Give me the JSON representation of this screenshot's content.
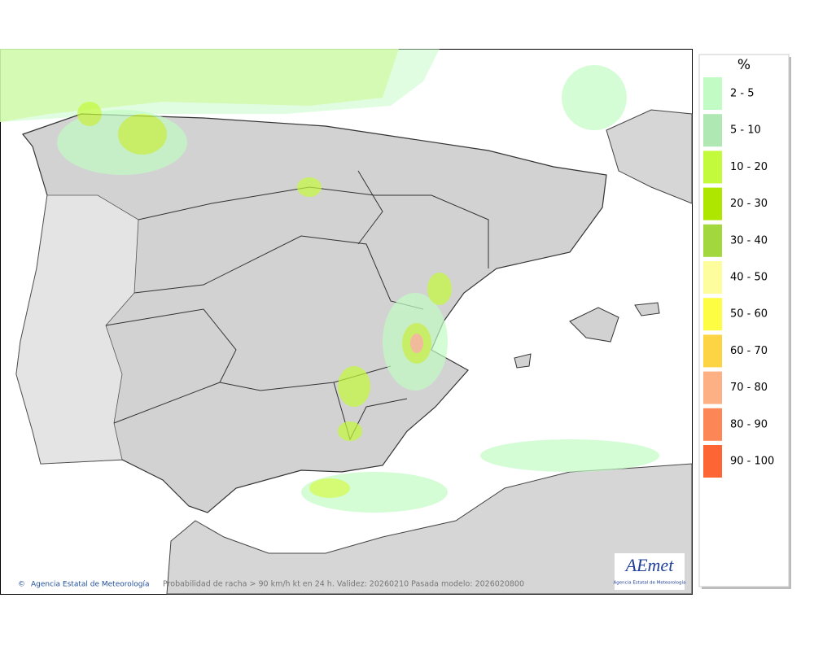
{
  "map": {
    "caption": "Probabilidad de racha > 90 km/h kt en 24 h. Validez: 20260210 Pasada modelo: 2026020800",
    "credit": "Agencia Estatal de Meteorología",
    "logo": {
      "name": "AEmet",
      "subtitle": "Agencia Estatal de Meteorología"
    }
  },
  "legend": {
    "title": "%",
    "items": [
      {
        "label": "2 - 5",
        "color": "#c2fcc4"
      },
      {
        "label": "5 - 10",
        "color": "#b0e8b4"
      },
      {
        "label": "10 - 20",
        "color": "#c4fa3c"
      },
      {
        "label": "20 - 30",
        "color": "#aee600"
      },
      {
        "label": "30 - 40",
        "color": "#a2d83e"
      },
      {
        "label": "40 - 50",
        "color": "#fdfd9e"
      },
      {
        "label": "50 - 60",
        "color": "#fdfd44"
      },
      {
        "label": "60 - 70",
        "color": "#fdd444"
      },
      {
        "label": "70 - 80",
        "color": "#fdb084"
      },
      {
        "label": "80 - 90",
        "color": "#fd8656"
      },
      {
        "label": "90 - 100",
        "color": "#fd6634"
      }
    ]
  }
}
